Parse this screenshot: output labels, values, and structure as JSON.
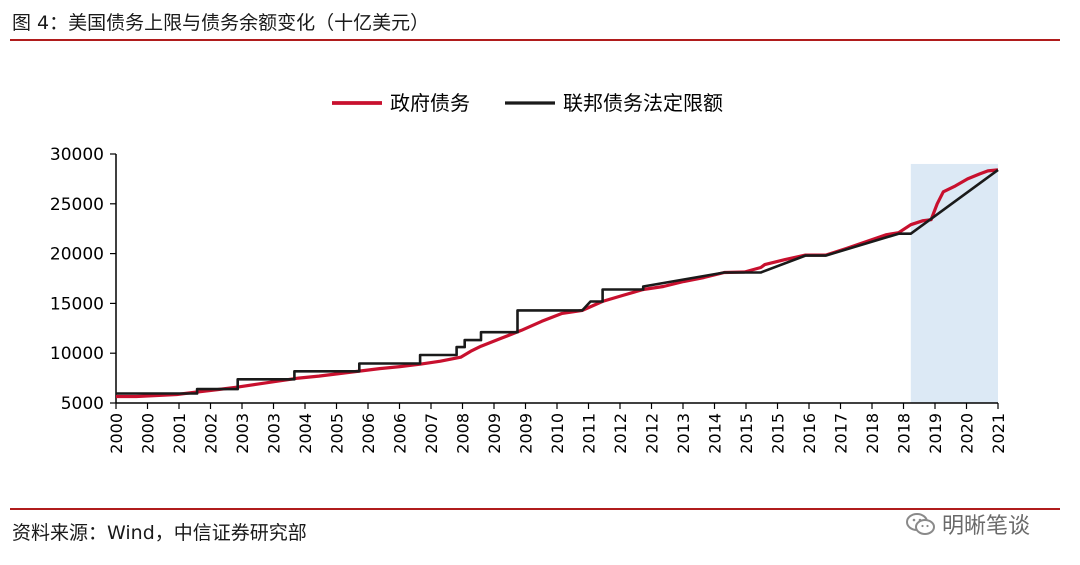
{
  "figure": {
    "title": "图 4：美国债务上限与债务余额变化（十亿美元）",
    "source": "资料来源：Wind，中信证券研究部",
    "watermark": "明晰笔谈"
  },
  "colors": {
    "series_government_debt": "#c8102e",
    "series_debt_limit": "#1a1a1a",
    "rule": "#b01c1c",
    "highlight_band": "#dce9f5"
  },
  "chart_data": {
    "type": "line",
    "title": "",
    "xlabel": "",
    "ylabel": "",
    "xlim": [
      2000.0,
      2021.75
    ],
    "ylim": [
      5000,
      30000
    ],
    "y_ticks": [
      5000,
      10000,
      15000,
      20000,
      25000,
      30000
    ],
    "y_tick_labels": [
      "5000",
      "10000",
      "15000",
      "20000",
      "25000",
      "30000"
    ],
    "x_tick_labels": [
      "2000",
      "2000",
      "2001",
      "2002",
      "2003",
      "2003",
      "2004",
      "2005",
      "2006",
      "2006",
      "2007",
      "2008",
      "2009",
      "2009",
      "2010",
      "2011",
      "2012",
      "2012",
      "2013",
      "2014",
      "2015",
      "2015",
      "2016",
      "2017",
      "2018",
      "2018",
      "2019",
      "2020",
      "2021"
    ],
    "legend_position": "top-center",
    "grid": false,
    "highlight_region": {
      "x_start": 2019.6,
      "x_end": 2021.75,
      "y_start": 5000,
      "y_end": 29000
    },
    "series": [
      {
        "name": "政府债务",
        "points": [
          [
            2000.0,
            5650
          ],
          [
            2000.5,
            5650
          ],
          [
            2001.0,
            5750
          ],
          [
            2001.5,
            5850
          ],
          [
            2002.0,
            6100
          ],
          [
            2002.5,
            6350
          ],
          [
            2003.0,
            6600
          ],
          [
            2003.5,
            6900
          ],
          [
            2004.0,
            7200
          ],
          [
            2004.5,
            7500
          ],
          [
            2005.0,
            7700
          ],
          [
            2005.5,
            7950
          ],
          [
            2006.0,
            8200
          ],
          [
            2006.5,
            8450
          ],
          [
            2007.0,
            8650
          ],
          [
            2007.5,
            8900
          ],
          [
            2008.0,
            9200
          ],
          [
            2008.5,
            9600
          ],
          [
            2008.75,
            10200
          ],
          [
            2009.0,
            10700
          ],
          [
            2009.5,
            11500
          ],
          [
            2010.0,
            12300
          ],
          [
            2010.5,
            13200
          ],
          [
            2011.0,
            14000
          ],
          [
            2011.5,
            14300
          ],
          [
            2012.0,
            15200
          ],
          [
            2012.5,
            15800
          ],
          [
            2013.0,
            16400
          ],
          [
            2013.5,
            16700
          ],
          [
            2014.0,
            17200
          ],
          [
            2014.5,
            17600
          ],
          [
            2015.0,
            18100
          ],
          [
            2015.5,
            18150
          ],
          [
            2015.9,
            18600
          ],
          [
            2016.0,
            18900
          ],
          [
            2016.5,
            19400
          ],
          [
            2017.0,
            19850
          ],
          [
            2017.5,
            19850
          ],
          [
            2018.0,
            20500
          ],
          [
            2018.5,
            21200
          ],
          [
            2019.0,
            21900
          ],
          [
            2019.3,
            22100
          ],
          [
            2019.6,
            22900
          ],
          [
            2019.9,
            23300
          ],
          [
            2020.1,
            23400
          ],
          [
            2020.25,
            25000
          ],
          [
            2020.4,
            26200
          ],
          [
            2020.7,
            26800
          ],
          [
            2021.0,
            27500
          ],
          [
            2021.3,
            28000
          ],
          [
            2021.5,
            28300
          ],
          [
            2021.75,
            28400
          ]
        ]
      },
      {
        "name": "联邦债务法定限额",
        "points": [
          [
            2000.0,
            5950
          ],
          [
            2002.0,
            5950
          ],
          [
            2002.0,
            6400
          ],
          [
            2003.0,
            6400
          ],
          [
            2003.0,
            7384
          ],
          [
            2004.4,
            7384
          ],
          [
            2004.4,
            8184
          ],
          [
            2006.0,
            8184
          ],
          [
            2006.0,
            8965
          ],
          [
            2007.5,
            8965
          ],
          [
            2007.5,
            9815
          ],
          [
            2008.4,
            9815
          ],
          [
            2008.4,
            10615
          ],
          [
            2008.6,
            10615
          ],
          [
            2008.6,
            11315
          ],
          [
            2009.0,
            11315
          ],
          [
            2009.0,
            12104
          ],
          [
            2009.9,
            12104
          ],
          [
            2009.9,
            14294
          ],
          [
            2011.5,
            14294
          ],
          [
            2011.7,
            15194
          ],
          [
            2012.0,
            15194
          ],
          [
            2012.0,
            16394
          ],
          [
            2013.0,
            16394
          ],
          [
            2013.0,
            16700
          ],
          [
            2015.0,
            18100
          ],
          [
            2015.9,
            18100
          ],
          [
            2017.0,
            19800
          ],
          [
            2017.5,
            19800
          ],
          [
            2019.3,
            22000
          ],
          [
            2019.6,
            22000
          ],
          [
            2021.75,
            28400
          ]
        ]
      }
    ]
  }
}
